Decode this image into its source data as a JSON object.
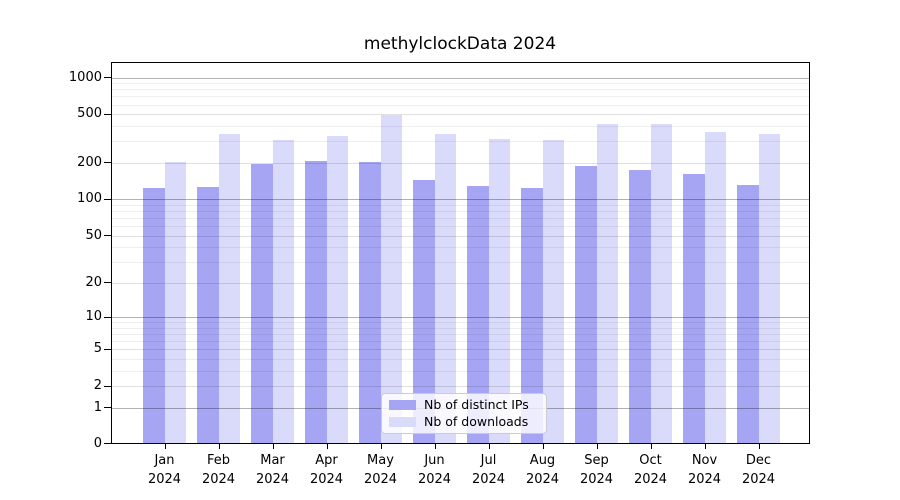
{
  "chart_data": {
    "type": "bar",
    "title": "methylclockData 2024",
    "categories": [
      "Jan",
      "Feb",
      "Mar",
      "Apr",
      "May",
      "Jun",
      "Jul",
      "Aug",
      "Sep",
      "Oct",
      "Nov",
      "Dec"
    ],
    "year": "2024",
    "series": [
      {
        "name": "Nb of distinct IPs",
        "color": "#a5a5f3",
        "values": [
          123,
          127,
          196,
          208,
          202,
          145,
          128,
          125,
          190,
          176,
          161,
          131
        ]
      },
      {
        "name": "Nb of downloads",
        "color": "#dadafb",
        "values": [
          205,
          348,
          309,
          330,
          490,
          344,
          316,
          306,
          415,
          415,
          361,
          345
        ]
      }
    ],
    "xlabel": "",
    "ylabel": "",
    "yscale": "log-like (position proportional to log10(value+1))",
    "yticks": [
      0,
      1,
      2,
      5,
      10,
      20,
      50,
      100,
      200,
      500,
      1000
    ],
    "yticklabels": [
      "0",
      "1",
      "2",
      "5",
      "10",
      "20",
      "50",
      "100",
      "200",
      "500",
      "1000"
    ],
    "ylim": [
      0,
      1100
    ],
    "grid": "horizontal gridlines: dark at powers of 10, light at other ticks, faint log minors",
    "legend_position": "lower center, inside plot",
    "style": {
      "bar_color_ips": "#a5a5f3",
      "bar_color_downloads": "#dadafb",
      "spine_color": "#000000",
      "major_grid_color": "#b3b3b3",
      "minor_grid_color": "#ececec",
      "legend_border_color": "#cccccc",
      "legend_background": "rgba(255,255,255,0.8)",
      "text_color": "#000000",
      "background": "#ffffff"
    }
  }
}
